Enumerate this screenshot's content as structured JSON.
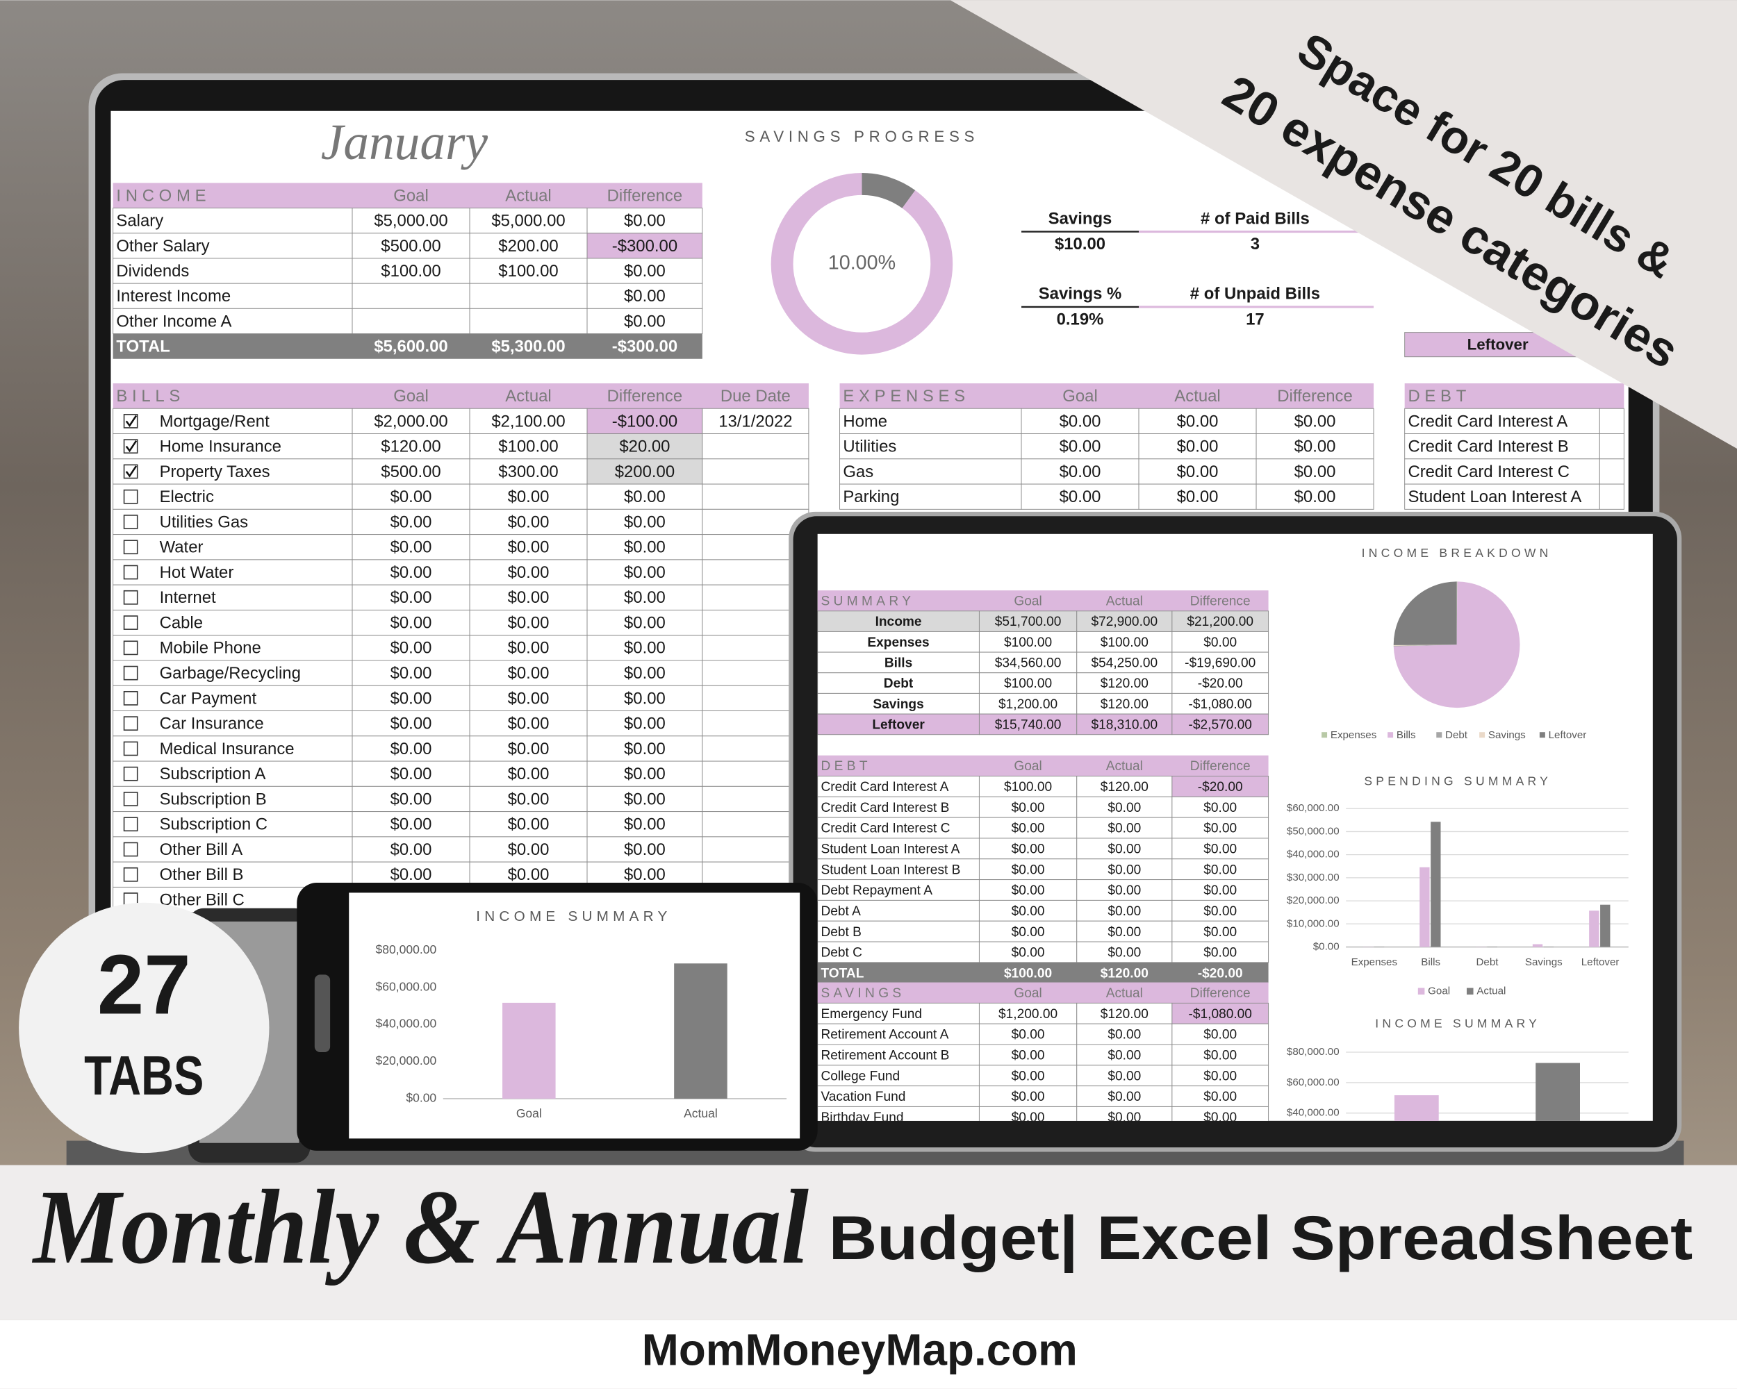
{
  "banner": {
    "line1": "Space for 20 bills &",
    "line2": "20 expense categories"
  },
  "badge": {
    "number": "27",
    "label": "TABS"
  },
  "footer": {
    "script": "Monthly & Annual",
    "title": "Budget| Excel Spreadsheet",
    "site": "MomMoneyMap.com"
  },
  "month": "January",
  "income": {
    "title": "INCOME",
    "columns": [
      "Goal",
      "Actual",
      "Difference"
    ],
    "rows": [
      [
        "Salary",
        "$5,000.00",
        "$5,000.00",
        "$0.00"
      ],
      [
        "Other Salary",
        "$500.00",
        "$200.00",
        "-$300.00"
      ],
      [
        "Dividends",
        "$100.00",
        "$100.00",
        "$0.00"
      ],
      [
        "Interest Income",
        null,
        null,
        "$0.00"
      ],
      [
        "Other Income A",
        null,
        null,
        "$0.00"
      ]
    ],
    "total": [
      "TOTAL",
      "$5,600.00",
      "$5,300.00",
      "-$300.00"
    ]
  },
  "stats": [
    {
      "label": "Savings",
      "value": "$10.00"
    },
    {
      "label": "# of Paid Bills",
      "value": "3"
    },
    {
      "label": "Savings %",
      "value": "0.19%"
    },
    {
      "label": "# of Unpaid Bills",
      "value": "17"
    }
  ],
  "leftover_cell": "Leftover",
  "bills": {
    "title": "BILLS",
    "columns": [
      "Goal",
      "Actual",
      "Difference",
      "Due Date"
    ],
    "rows": [
      [
        "Mortgage/Rent",
        "$2,000.00",
        "$2,100.00",
        "-$100.00",
        "13/1/2022"
      ],
      [
        "Home Insurance",
        "$120.00",
        "$100.00",
        "$20.00"
      ],
      [
        "Property Taxes",
        "$500.00",
        "$300.00",
        "$200.00"
      ],
      [
        "Electric",
        "$0.00",
        "$0.00",
        "$0.00"
      ],
      [
        "Utilities Gas",
        "$0.00",
        "$0.00",
        "$0.00"
      ],
      [
        "Water",
        "$0.00",
        "$0.00",
        "$0.00"
      ],
      [
        "Hot Water",
        "$0.00",
        "$0.00",
        "$0.00"
      ],
      [
        "Internet",
        "$0.00",
        "$0.00",
        "$0.00"
      ],
      [
        "Cable",
        "$0.00",
        "$0.00",
        "$0.00"
      ],
      [
        "Mobile Phone",
        "$0.00",
        "$0.00",
        "$0.00"
      ],
      [
        "Garbage/Recycling",
        "$0.00",
        "$0.00",
        "$0.00"
      ],
      [
        "Car Payment",
        "$0.00",
        "$0.00",
        "$0.00"
      ],
      [
        "Car Insurance",
        "$0.00",
        "$0.00",
        "$0.00"
      ],
      [
        "Medical Insurance",
        "$0.00",
        "$0.00",
        "$0.00"
      ],
      [
        "Subscription A",
        "$0.00",
        "$0.00",
        "$0.00"
      ],
      [
        "Subscription B",
        "$0.00",
        "$0.00",
        "$0.00"
      ],
      [
        "Subscription C",
        "$0.00",
        "$0.00",
        "$0.00"
      ],
      [
        "Other Bill A",
        "$0.00",
        "$0.00",
        "$0.00"
      ],
      [
        "Other Bill B",
        "$0.00",
        "$0.00",
        "$0.00"
      ],
      [
        "Other Bill C"
      ]
    ],
    "paid": [
      true,
      true,
      true,
      false,
      false,
      false,
      false,
      false,
      false,
      false,
      false,
      false,
      false,
      false,
      false,
      false,
      false,
      false,
      false,
      false
    ]
  },
  "expenses": {
    "title": "EXPENSES",
    "columns": [
      "Goal",
      "Actual",
      "Difference"
    ],
    "rows": [
      [
        "Home",
        "$0.00",
        "$0.00",
        "$0.00"
      ],
      [
        "Utilities",
        "$0.00",
        "$0.00",
        "$0.00"
      ],
      [
        "Gas",
        "$0.00",
        "$0.00",
        "$0.00"
      ],
      [
        "Parking",
        "$0.00",
        "$0.00",
        "$0.00"
      ]
    ]
  },
  "debt": {
    "title": "DEBT",
    "rows": [
      [
        "Credit Card Interest A"
      ],
      [
        "Credit Card Interest B"
      ],
      [
        "Credit Card Interest C"
      ],
      [
        "Student Loan Interest A"
      ]
    ]
  },
  "annual_summary": {
    "title": "SUMMARY",
    "columns": [
      "Goal",
      "Actual",
      "Difference"
    ],
    "rows": [
      [
        "Income",
        "$51,700.00",
        "$72,900.00",
        "$21,200.00"
      ],
      [
        "Expenses",
        "$100.00",
        "$100.00",
        "$0.00"
      ],
      [
        "Bills",
        "$34,560.00",
        "$54,250.00",
        "-$19,690.00"
      ],
      [
        "Debt",
        "$100.00",
        "$120.00",
        "-$20.00"
      ],
      [
        "Savings",
        "$1,200.00",
        "$120.00",
        "-$1,080.00"
      ],
      [
        "Leftover",
        "$15,740.00",
        "$18,310.00",
        "-$2,570.00"
      ]
    ]
  },
  "annual_debt": {
    "title": "DEBT",
    "columns": [
      "Goal",
      "Actual",
      "Difference"
    ],
    "rows": [
      [
        "Credit Card Interest A",
        "$100.00",
        "$120.00",
        "-$20.00"
      ],
      [
        "Credit Card Interest B",
        "$0.00",
        "$0.00",
        "$0.00"
      ],
      [
        "Credit Card Interest C",
        "$0.00",
        "$0.00",
        "$0.00"
      ],
      [
        "Student Loan Interest A",
        "$0.00",
        "$0.00",
        "$0.00"
      ],
      [
        "Student Loan Interest B",
        "$0.00",
        "$0.00",
        "$0.00"
      ],
      [
        "Debt Repayment A",
        "$0.00",
        "$0.00",
        "$0.00"
      ],
      [
        "Debt A",
        "$0.00",
        "$0.00",
        "$0.00"
      ],
      [
        "Debt B",
        "$0.00",
        "$0.00",
        "$0.00"
      ],
      [
        "Debt C",
        "$0.00",
        "$0.00",
        "$0.00"
      ]
    ],
    "total": [
      "TOTAL",
      "$100.00",
      "$120.00",
      "-$20.00"
    ]
  },
  "annual_savings": {
    "title": "SAVINGS",
    "columns": [
      "Goal",
      "Actual",
      "Difference"
    ],
    "rows": [
      [
        "Emergency Fund",
        "$1,200.00",
        "$120.00",
        "-$1,080.00"
      ],
      [
        "Retirement Account A",
        "$0.00",
        "$0.00",
        "$0.00"
      ],
      [
        "Retirement Account B",
        "$0.00",
        "$0.00",
        "$0.00"
      ],
      [
        "College Fund",
        "$0.00",
        "$0.00",
        "$0.00"
      ],
      [
        "Vacation Fund",
        "$0.00",
        "$0.00",
        "$0.00"
      ],
      [
        "Birthday Fund",
        "$0.00",
        "$0.00",
        "$0.00"
      ]
    ]
  },
  "chart_data": [
    {
      "type": "donut",
      "title": "SAVINGS PROGRESS",
      "center_label": "10.00%",
      "values": [
        10,
        90
      ],
      "colors": [
        "#7f7f7f",
        "#dcb8dd"
      ]
    },
    {
      "type": "pie",
      "title": "INCOME BREAKDOWN",
      "categories": [
        "Expenses",
        "Bills",
        "Debt",
        "Savings",
        "Leftover"
      ],
      "values": [
        100,
        54250,
        120,
        120,
        18310
      ],
      "colors": [
        "#b8c9a6",
        "#dcb8dd",
        "#a6a6a6",
        "#ead9c8",
        "#7f7f7f"
      ],
      "legend": "bottom"
    },
    {
      "type": "bar",
      "title": "SPENDING SUMMARY",
      "categories": [
        "Expenses",
        "Bills",
        "Debt",
        "Savings",
        "Leftover"
      ],
      "series": [
        {
          "name": "Goal",
          "color": "#dcb8dd",
          "values": [
            100,
            34560,
            100,
            1200,
            15740
          ]
        },
        {
          "name": "Actual",
          "color": "#7f7f7f",
          "values": [
            100,
            54250,
            120,
            120,
            18310
          ]
        }
      ],
      "ylim": [
        0,
        60000
      ],
      "yticks": [
        {
          "value": 0,
          "label": "$0.00"
        },
        {
          "value": 10000,
          "label": "$10,000.00"
        },
        {
          "value": 20000,
          "label": "$20,000.00"
        },
        {
          "value": 30000,
          "label": "$30,000.00"
        },
        {
          "value": 40000,
          "label": "$40,000.00"
        },
        {
          "value": 50000,
          "label": "$50,000.00"
        },
        {
          "value": 60000,
          "label": "$60,000.00"
        }
      ],
      "grid": true,
      "legend": "bottom"
    },
    {
      "type": "bar",
      "title": "INCOME SUMMARY",
      "values": [
        51700,
        72900
      ],
      "colors": [
        "#dcb8dd",
        "#7f7f7f"
      ],
      "ylim": [
        0,
        80000
      ],
      "yticks": [
        {
          "value": 40000,
          "label": "$40,000.00"
        },
        {
          "value": 60000,
          "label": "$60,000.00"
        },
        {
          "value": 80000,
          "label": "$80,000.00"
        }
      ],
      "grid": true
    },
    {
      "type": "bar",
      "title": "INCOME SUMMARY",
      "categories": [
        "Goal",
        "Actual"
      ],
      "values": [
        51700,
        72900
      ],
      "colors": [
        "#dcb8dd",
        "#7f7f7f"
      ],
      "ylim": [
        0,
        80000
      ],
      "yticks": [
        {
          "value": 0,
          "label": "$0.00"
        },
        {
          "value": 20000,
          "label": "$20,000.00"
        },
        {
          "value": 40000,
          "label": "$40,000.00"
        },
        {
          "value": 60000,
          "label": "$60,000.00"
        },
        {
          "value": 80000,
          "label": "$80,000.00"
        }
      ],
      "grid": false
    }
  ]
}
